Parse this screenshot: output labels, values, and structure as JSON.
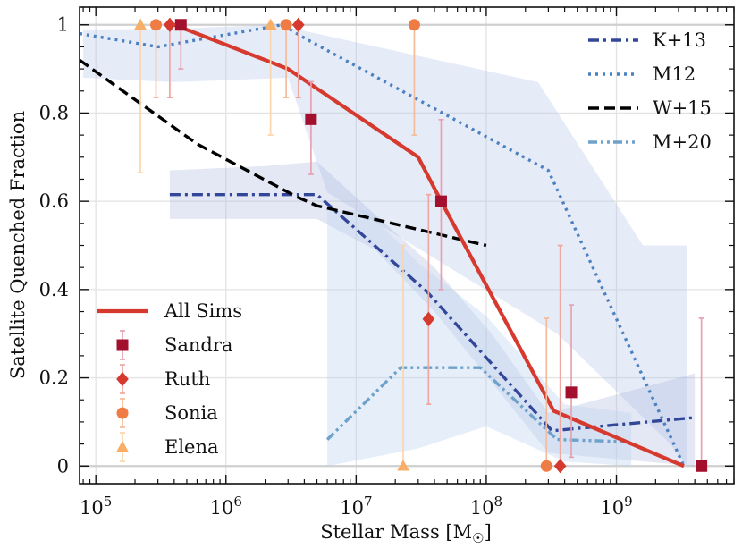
{
  "chart_data": {
    "type": "line",
    "xlabel": "Stellar Mass [M",
    "xlabel_sub": "☉",
    "xlabel_close": "]",
    "ylabel": "Satellite Quenched Fraction",
    "xscale": "log",
    "xlim": [
      75000,
      8000000000
    ],
    "ylim": [
      -0.04,
      1.04
    ],
    "grid": true,
    "legend_placement": [
      "top-right",
      "bottom-left"
    ],
    "x_ticks": [
      {
        "value": 100000,
        "base": "10",
        "exp": "5"
      },
      {
        "value": 1000000,
        "base": "10",
        "exp": "6"
      },
      {
        "value": 10000000,
        "base": "10",
        "exp": "7"
      },
      {
        "value": 100000000,
        "base": "10",
        "exp": "8"
      },
      {
        "value": 1000000000,
        "base": "10",
        "exp": "9"
      }
    ],
    "y_ticks": [
      {
        "value": 0,
        "label": "0"
      },
      {
        "value": 0.2,
        "label": "0.2"
      },
      {
        "value": 0.4,
        "label": "0.4"
      },
      {
        "value": 0.6,
        "label": "0.6"
      },
      {
        "value": 0.8,
        "label": "0.8"
      },
      {
        "value": 1.0,
        "label": "1"
      }
    ],
    "bands": [
      {
        "series": "M12",
        "color": "#aec3e8",
        "opacity": 0.32,
        "upper": [
          [
            80000,
            0.99
          ],
          [
            300000,
            0.99
          ],
          [
            2500000,
            1.0
          ],
          [
            3500000,
            0.99
          ],
          [
            250000000,
            0.87
          ],
          [
            1600000000,
            0.5
          ],
          [
            3500000000,
            0.5
          ]
        ],
        "lower": [
          [
            3500000000,
            0.0
          ],
          [
            2600000000,
            0.05
          ],
          [
            350000000,
            0.3
          ],
          [
            6000000,
            0.62
          ],
          [
            3000000,
            0.88
          ],
          [
            400000,
            0.87
          ],
          [
            80000,
            0.88
          ]
        ]
      },
      {
        "series": "K+13",
        "color": "#aab4dc",
        "opacity": 0.32,
        "upper": [
          [
            370000,
            0.67
          ],
          [
            2000000,
            0.68
          ],
          [
            5000000,
            0.69
          ],
          [
            14000000,
            0.57
          ],
          [
            40000000,
            0.45
          ],
          [
            110000000,
            0.3
          ],
          [
            300000000,
            0.12
          ],
          [
            4000000000,
            0.21
          ]
        ],
        "lower": [
          [
            4000000000,
            0.0
          ],
          [
            300000000,
            0.03
          ],
          [
            110000000,
            0.19
          ],
          [
            40000000,
            0.35
          ],
          [
            14000000,
            0.49
          ],
          [
            5000000,
            0.56
          ],
          [
            2000000,
            0.56
          ],
          [
            370000,
            0.56
          ]
        ]
      },
      {
        "series": "M+20",
        "color": "#bcd6ee",
        "opacity": 0.38,
        "upper": [
          [
            6000000,
            0.58
          ],
          [
            12000000,
            0.58
          ],
          [
            30000000,
            0.46
          ],
          [
            100000000,
            0.34
          ],
          [
            400000000,
            0.14
          ],
          [
            1300000000,
            0.12
          ]
        ],
        "lower": [
          [
            1300000000,
            0.0
          ],
          [
            400000000,
            0.01
          ],
          [
            100000000,
            0.09
          ],
          [
            30000000,
            0.04
          ],
          [
            6000000,
            0.0
          ]
        ]
      }
    ],
    "series": [
      {
        "name": "All Sims",
        "color": "#d63a2e",
        "style": "solid",
        "width": 4.2,
        "points": [
          [
            400000,
            1.0
          ],
          [
            3000000,
            0.9
          ],
          [
            30000000,
            0.7
          ],
          [
            45000000,
            0.6
          ],
          [
            330000000,
            0.125
          ],
          [
            3300000000,
            0.0
          ]
        ]
      },
      {
        "name": "K+13",
        "color": "#32469a",
        "style": "dashdot",
        "width": 3.4,
        "points": [
          [
            370000,
            0.615
          ],
          [
            5000000,
            0.615
          ],
          [
            35000000,
            0.395
          ],
          [
            320000000,
            0.08
          ],
          [
            4000000000,
            0.11
          ]
        ]
      },
      {
        "name": "M12",
        "color": "#4c80bf",
        "style": "dotted",
        "width": 3.4,
        "points": [
          [
            75000,
            0.98
          ],
          [
            300000,
            0.95
          ],
          [
            2700000,
            1.0
          ],
          [
            4000000,
            0.97
          ],
          [
            30000000,
            0.83
          ],
          [
            300000000,
            0.67
          ],
          [
            3300000000,
            0.0
          ]
        ]
      },
      {
        "name": "W+15",
        "color": "#000000",
        "style": "dashed",
        "width": 3.4,
        "points": [
          [
            75000,
            0.92
          ],
          [
            600000,
            0.73
          ],
          [
            3500000,
            0.61
          ],
          [
            5000000,
            0.59
          ],
          [
            100000000,
            0.5
          ]
        ]
      },
      {
        "name": "M+20",
        "color": "#6ea2cc",
        "style": "dashdotdot",
        "width": 3.4,
        "points": [
          [
            6000000,
            0.06
          ],
          [
            22000000,
            0.223
          ],
          [
            90000000,
            0.223
          ],
          [
            350000000,
            0.06
          ],
          [
            1300000000,
            0.055
          ]
        ]
      }
    ],
    "points": [
      {
        "name": "Sandra",
        "marker": "square",
        "color": "#a3102e",
        "ecolor": "#e6a2b2",
        "data": [
          [
            450000,
            1.0,
            0.9,
            1.0
          ],
          [
            4500000,
            0.786,
            0.661,
            0.871
          ],
          [
            45000000,
            0.6,
            0.4,
            0.785
          ],
          [
            450000000,
            0.167,
            0.02,
            0.365
          ],
          [
            4500000000,
            0.0,
            0.0,
            0.335
          ]
        ]
      },
      {
        "name": "Ruth",
        "marker": "diamond",
        "color": "#d63a2e",
        "ecolor": "#eea8a0",
        "data": [
          [
            370000,
            1.0,
            0.835,
            1.0
          ],
          [
            3600000,
            1.0,
            0.835,
            1.0
          ],
          [
            36000000,
            0.333,
            0.14,
            0.615
          ],
          [
            370000000,
            0.0,
            0.0,
            0.5
          ]
        ]
      },
      {
        "name": "Sonia",
        "marker": "circle",
        "color": "#f07c45",
        "ecolor": "#f4bc9a",
        "data": [
          [
            290000,
            1.0,
            0.835,
            1.0
          ],
          [
            2900000,
            1.0,
            0.835,
            1.0
          ],
          [
            28000000,
            1.0,
            0.75,
            1.0
          ],
          [
            290000000,
            0.0,
            0.0,
            0.335
          ]
        ]
      },
      {
        "name": "Elena",
        "marker": "triangle",
        "color": "#f8ae66",
        "ecolor": "#fbd5ad",
        "data": [
          [
            220000,
            1.0,
            0.665,
            1.0
          ],
          [
            2200000,
            1.0,
            0.75,
            1.0
          ],
          [
            23000000,
            0.0,
            0.0,
            0.5
          ]
        ]
      }
    ],
    "legend_top": [
      "K+13",
      "M12",
      "W+15",
      "M+20"
    ],
    "legend_bottom": [
      "All Sims",
      "Sandra",
      "Ruth",
      "Sonia",
      "Elena"
    ]
  }
}
